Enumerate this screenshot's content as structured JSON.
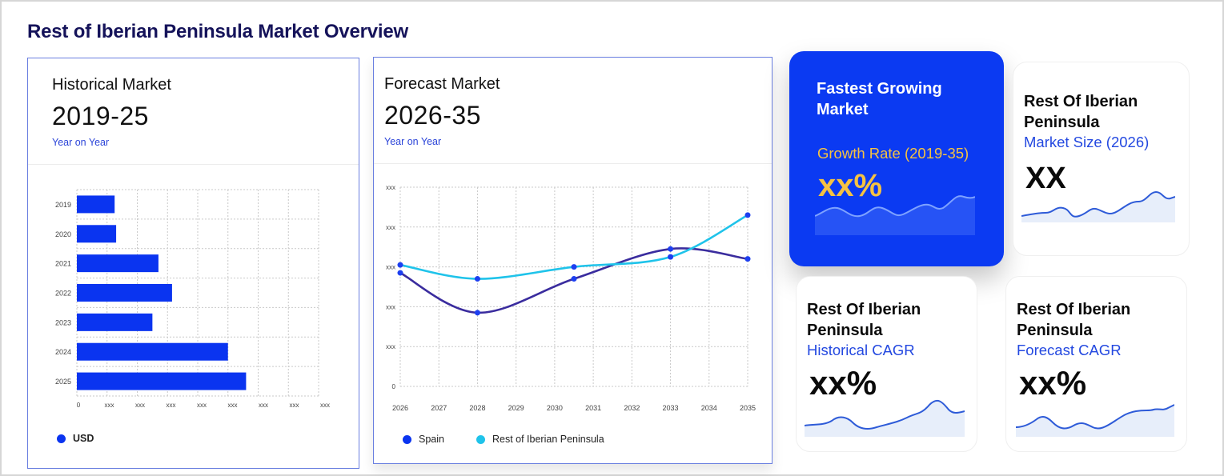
{
  "page": {
    "title": "Rest of Iberian Peninsula Market Overview"
  },
  "historical": {
    "title": "Historical Market",
    "range": "2019-25",
    "subtitle": "Year on Year",
    "legend_label": "USD"
  },
  "forecast": {
    "title": "Forecast Market",
    "range": "2026-35",
    "subtitle": "Year on Year",
    "legend": [
      "Spain",
      "Rest of Iberian Peninsula"
    ]
  },
  "cards": {
    "fastest": {
      "heading_line1": "Fastest Growing",
      "heading_line2": "Market",
      "metric": "Growth Rate (2019-35)",
      "value": "xx%"
    },
    "market_size": {
      "heading_line1": "Rest Of Iberian",
      "heading_line2": "Peninsula",
      "metric": "Market Size (2026)",
      "value": "XX"
    },
    "hist_cagr": {
      "heading_line1": "Rest Of Iberian",
      "heading_line2": "Peninsula",
      "metric": "Historical CAGR",
      "value": "xx%"
    },
    "fore_cagr": {
      "heading_line1": "Rest Of Iberian",
      "heading_line2": "Peninsula",
      "metric": "Forecast CAGR",
      "value": "xx%"
    }
  },
  "colors": {
    "brand_blue": "#0b3af2",
    "bar_blue": "#0a34f0",
    "spain_line": "#3a2c9e",
    "rest_line": "#1fc3ea",
    "accent_yellow": "#f5c242",
    "metric_blue": "#2348e0",
    "sparkline": "#2e5bd8"
  },
  "chart_data": [
    {
      "type": "bar",
      "orientation": "horizontal",
      "categories": [
        "2019",
        "2020",
        "2021",
        "2022",
        "2023",
        "2024",
        "2025"
      ],
      "series": [
        {
          "name": "USD",
          "values": [
            1.25,
            1.3,
            2.7,
            3.15,
            2.5,
            5.0,
            5.6
          ]
        }
      ],
      "x_tick_labels": [
        "0",
        "xxx",
        "xxx",
        "xxx",
        "xxx",
        "xxx",
        "xxx",
        "xxx",
        "xxx"
      ],
      "xlim": [
        0,
        8
      ],
      "grid": true,
      "legend_position": "bottom-left"
    },
    {
      "type": "line",
      "x": [
        "2026",
        "2027",
        "2028",
        "2029",
        "2030",
        "2031",
        "2032",
        "2033",
        "2034",
        "2035"
      ],
      "series": [
        {
          "name": "Spain",
          "x": [
            2026,
            2028,
            2030.5,
            2033,
            2035
          ],
          "values": [
            2.85,
            1.85,
            2.7,
            3.45,
            3.2
          ]
        },
        {
          "name": "Rest of Iberian Peninsula",
          "x": [
            2026,
            2028,
            2030.5,
            2033,
            2035
          ],
          "values": [
            3.05,
            2.7,
            3.0,
            3.25,
            4.3
          ]
        }
      ],
      "y_tick_labels": [
        "0",
        "xxx",
        "xxx",
        "xxx",
        "xxx",
        "xxx"
      ],
      "ylim": [
        0,
        5
      ],
      "grid": true,
      "legend_position": "bottom"
    }
  ]
}
